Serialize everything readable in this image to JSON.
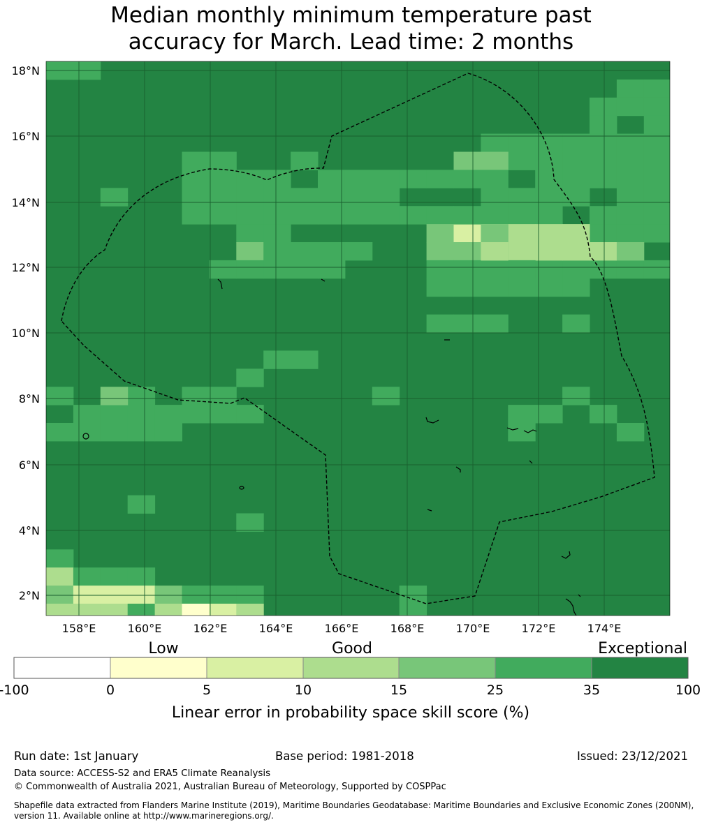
{
  "title": {
    "line1": "Median monthly minimum temperature past",
    "line2": "accuracy for March. Lead time: 2 months"
  },
  "map": {
    "lon_range": [
      157,
      176
    ],
    "lat_range": [
      1.4,
      18.3
    ],
    "lat_ticks": [
      "18°N",
      "16°N",
      "14°N",
      "12°N",
      "10°N",
      "8°N",
      "6°N",
      "4°N",
      "2°N"
    ],
    "lon_ticks": [
      "158°E",
      "160°E",
      "162°E",
      "164°E",
      "166°E",
      "168°E",
      "170°E",
      "172°E",
      "174°E"
    ],
    "grid": true,
    "boundary": "EEZ dashed outline"
  },
  "legend": {
    "category_labels": [
      "Low",
      "Good",
      "Exceptional"
    ],
    "tick_labels": [
      "-100",
      "0",
      "5",
      "10",
      "15",
      "25",
      "35",
      "100"
    ],
    "colors": [
      "#ffffff",
      "#ffffcc",
      "#d9f0a3",
      "#addd8e",
      "#78c679",
      "#41ab5d",
      "#238443"
    ],
    "xlabel": "Linear error in probability space skill score (%)"
  },
  "footer": {
    "run_date": "Run date: 1st January",
    "base_period": "Base period: 1981-2018",
    "issued": "Issued: 23/12/2021",
    "data_source": "Data source: ACCESS-S2 and ERA5 Climate Reanalysis",
    "copyright": "© Commonwealth of Australia 2021, Australian Bureau of Meteorology, Supported by COSPPac",
    "shapefile_line1": "Shapefile data extracted from Flanders Marine Institute (2019), Maritime Boundaries Geodatabase: Maritime Boundaries and Exclusive Economic Zones (200NM),",
    "shapefile_line2": "version 11. Available online at http://www.marineregions.org/."
  }
}
